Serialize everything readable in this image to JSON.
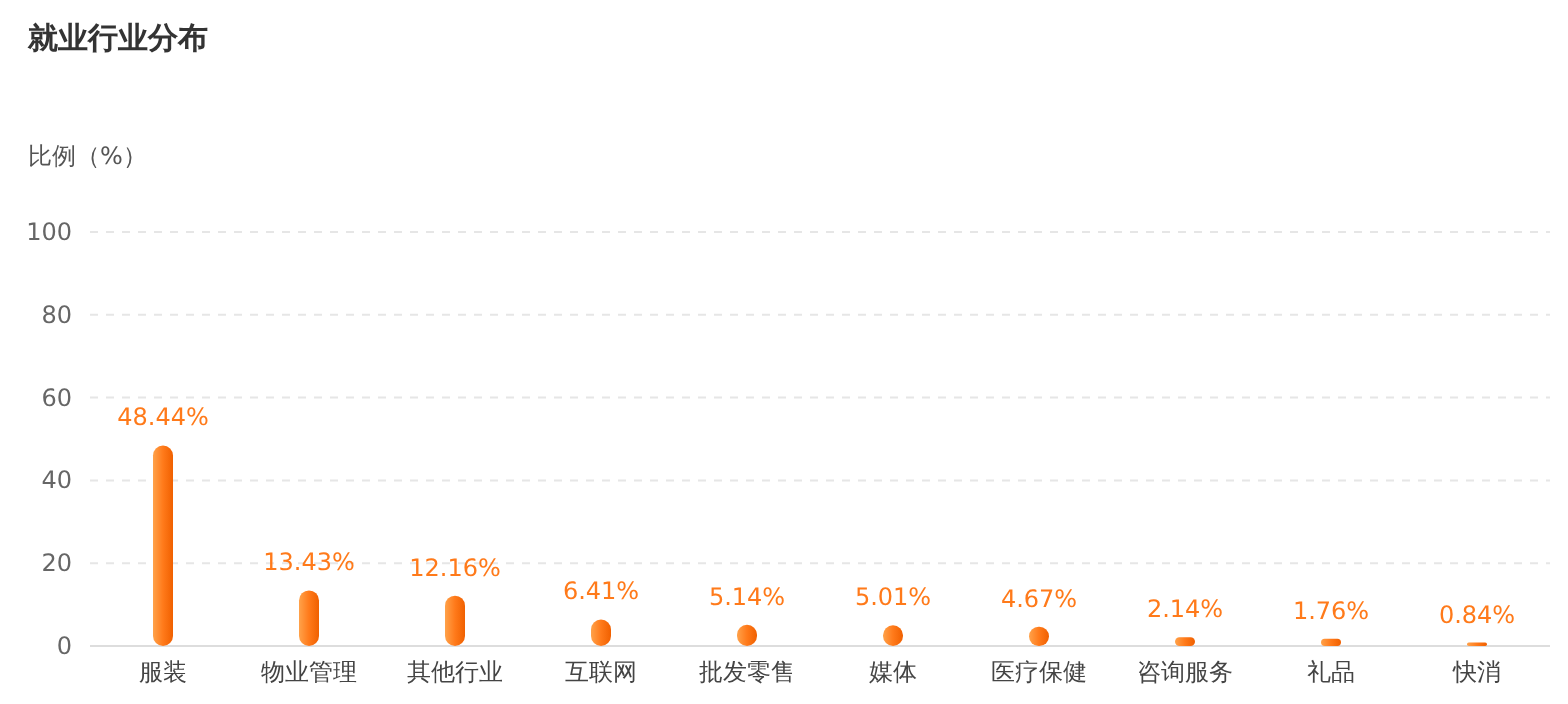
{
  "chart_data": {
    "type": "bar",
    "title": "就业行业分布",
    "ylabel": "比例（%）",
    "categories": [
      "服装",
      "物业管理",
      "其他行业",
      "互联网",
      "批发零售",
      "媒体",
      "医疗保健",
      "咨询服务",
      "礼品",
      "快消"
    ],
    "values": [
      48.44,
      13.43,
      12.16,
      6.41,
      5.14,
      5.01,
      4.67,
      2.14,
      1.76,
      0.84
    ],
    "value_labels": [
      "48.44%",
      "13.43%",
      "12.16%",
      "6.41%",
      "5.14%",
      "5.01%",
      "4.67%",
      "2.14%",
      "1.76%",
      "0.84%"
    ],
    "color": "#ff7a1a",
    "ylim": [
      0,
      100
    ],
    "yticks": [
      0,
      20,
      40,
      60,
      80,
      100
    ],
    "grid": "y"
  }
}
